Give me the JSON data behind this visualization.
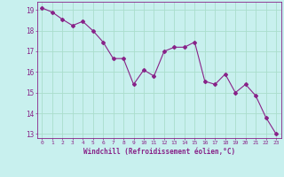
{
  "x": [
    0,
    1,
    2,
    3,
    4,
    5,
    6,
    7,
    8,
    9,
    10,
    11,
    12,
    13,
    14,
    15,
    16,
    17,
    18,
    19,
    20,
    21,
    22,
    23
  ],
  "y": [
    19.1,
    18.9,
    18.55,
    18.25,
    18.45,
    18.0,
    17.45,
    16.65,
    16.65,
    15.4,
    16.1,
    15.8,
    17.0,
    17.2,
    17.2,
    17.45,
    15.55,
    15.4,
    15.9,
    15.0,
    15.4,
    14.85,
    13.8,
    13.0
  ],
  "line_color": "#882288",
  "marker": "D",
  "marker_size": 2.0,
  "bg_color": "#c8f0ee",
  "grid_color": "#aaddcc",
  "xlabel": "Windchill (Refroidissement éolien,°C)",
  "xlabel_color": "#882288",
  "tick_color": "#882288",
  "ylim": [
    12.8,
    19.4
  ],
  "xlim": [
    -0.5,
    23.5
  ],
  "yticks": [
    13,
    14,
    15,
    16,
    17,
    18,
    19
  ],
  "xticks": [
    0,
    1,
    2,
    3,
    4,
    5,
    6,
    7,
    8,
    9,
    10,
    11,
    12,
    13,
    14,
    15,
    16,
    17,
    18,
    19,
    20,
    21,
    22,
    23
  ]
}
